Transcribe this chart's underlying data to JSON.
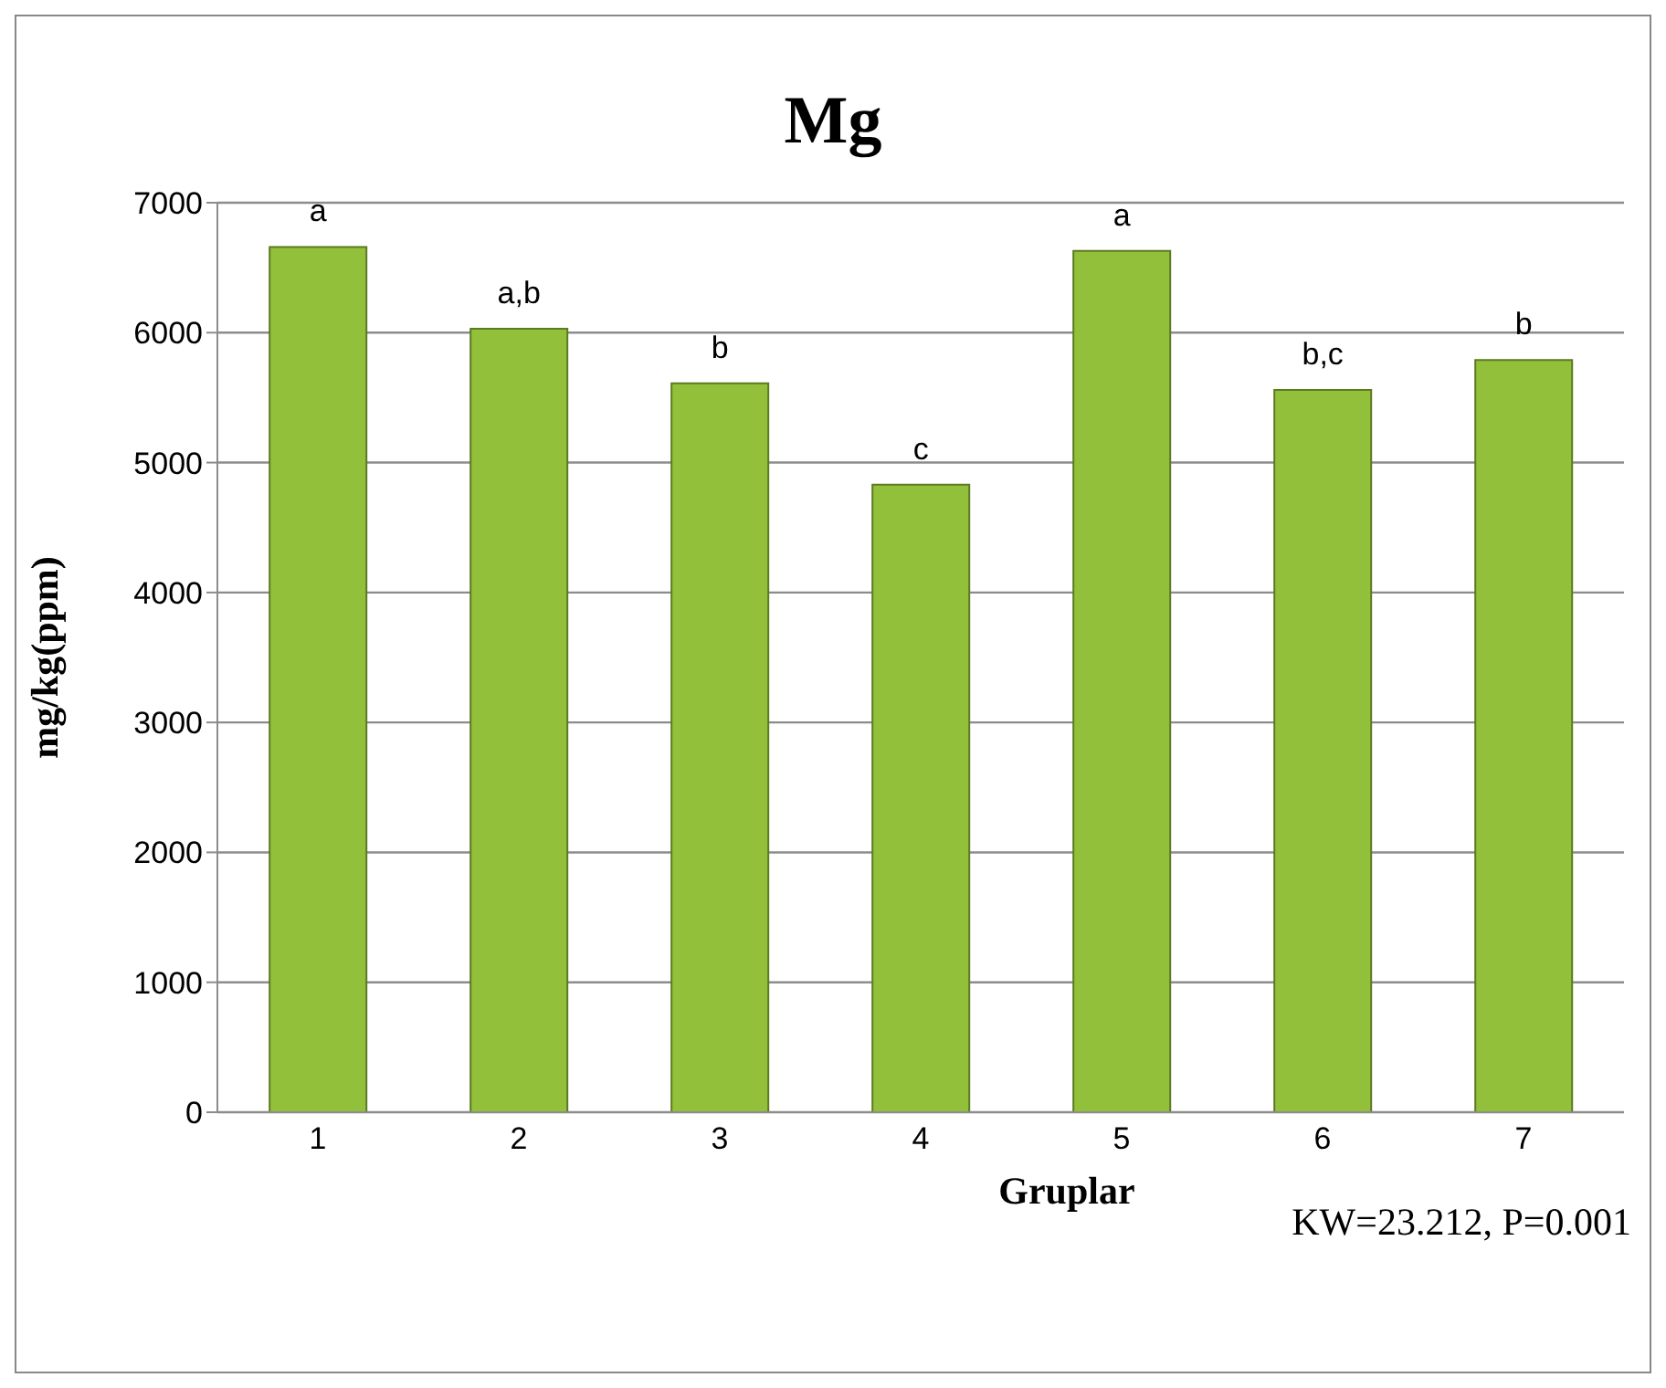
{
  "chart_data": {
    "type": "bar",
    "title": "Mg",
    "xlabel": "Gruplar",
    "ylabel": "mg/kg(ppm)",
    "categories": [
      "1",
      "2",
      "3",
      "4",
      "5",
      "6",
      "7"
    ],
    "values": [
      6660,
      6030,
      5610,
      4830,
      6630,
      5560,
      5790
    ],
    "value_labels": [
      "a",
      "a,b",
      "b",
      "c",
      "a",
      "b,c",
      "b"
    ],
    "color": "#92c03a",
    "ylim": [
      0,
      7000
    ],
    "yticks": [
      0,
      1000,
      2000,
      3000,
      4000,
      5000,
      6000,
      7000
    ],
    "grid": "y",
    "annotations": [
      "KW=23.212, P=0.001"
    ]
  }
}
